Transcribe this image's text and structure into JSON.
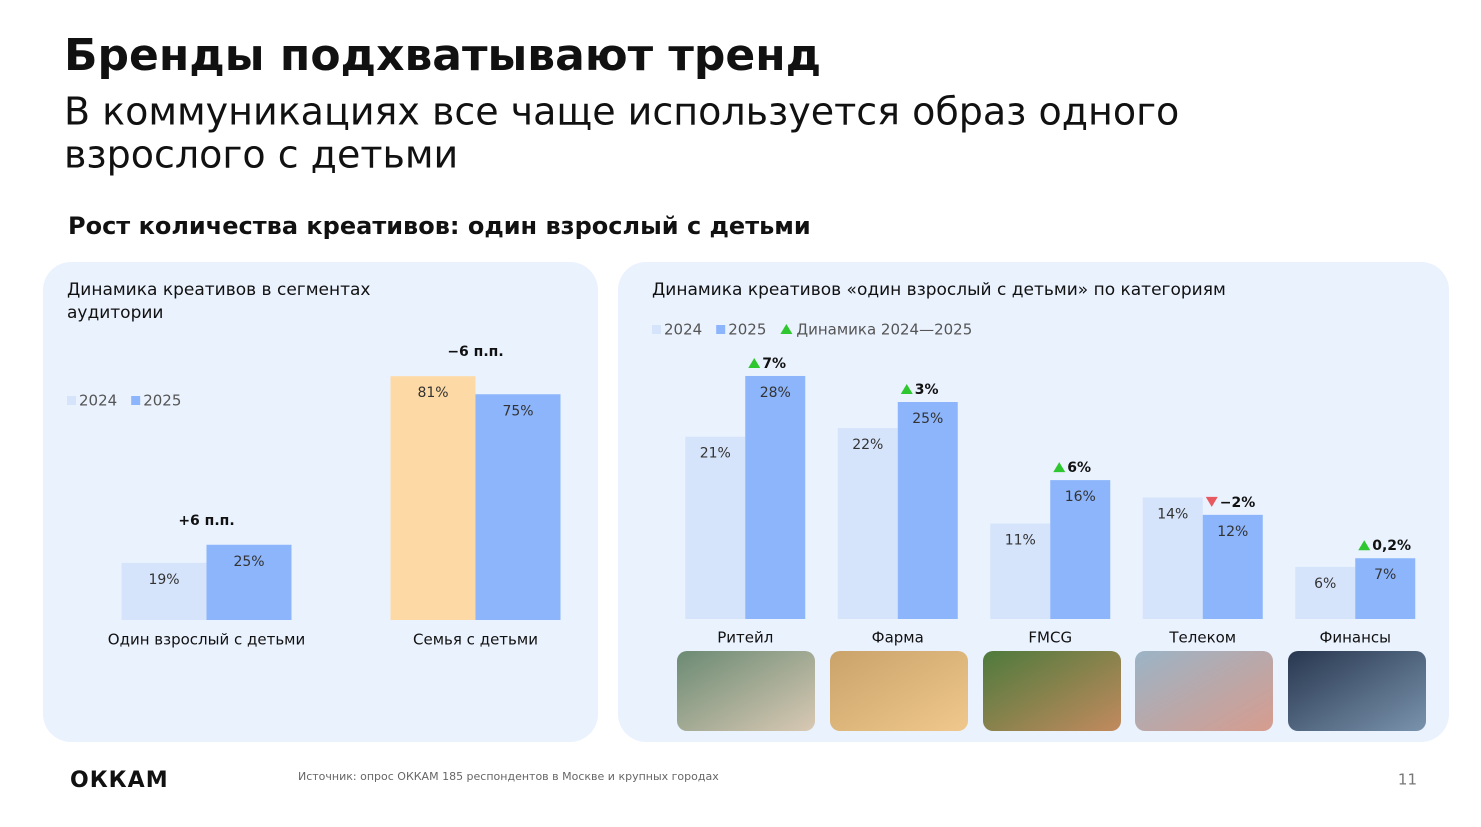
{
  "header": {
    "title": "Бренды подхватывают тренд",
    "subtitle": [
      "В коммуникациях все чаще используется образ одного",
      "взрослого с детьми"
    ],
    "section": "Рост количества креативов: один взрослый с детьми"
  },
  "chart_data": [
    {
      "type": "bar",
      "title": [
        "Динамика креативов в сегментах",
        "аудитории"
      ],
      "categories": [
        "Один взрослый с детьми",
        "Семья с детьми"
      ],
      "series": [
        {
          "name": "2024",
          "color": "#d6e4fb",
          "colors": [
            "#d6e4fb",
            "#fdd9a5"
          ],
          "values": [
            19,
            81
          ],
          "value_labels": [
            "19%",
            "81%"
          ]
        },
        {
          "name": "2025",
          "color": "#8cb5fb",
          "values": [
            25,
            75
          ],
          "value_labels": [
            "25%",
            "75%"
          ]
        }
      ],
      "annotations": [
        "+6 п.п.",
        "−6 п.п."
      ]
    },
    {
      "type": "bar",
      "title": [
        "Динамика креативов «один взрослый с детьми» по категориям"
      ],
      "categories": [
        "Ритейл",
        "Фарма",
        "FMCG",
        "Телеком",
        "Финансы"
      ],
      "series": [
        {
          "name": "2024",
          "color": "#d6e4fb",
          "values": [
            21,
            22,
            11,
            14,
            6
          ],
          "value_labels": [
            "21%",
            "22%",
            "11%",
            "14%",
            "6%"
          ]
        },
        {
          "name": "2025",
          "color": "#8cb5fb",
          "values": [
            28,
            25,
            16,
            12,
            7
          ],
          "value_labels": [
            "28%",
            "25%",
            "16%",
            "12%",
            "7%"
          ]
        }
      ],
      "delta_name": "Динамика 2024—2025",
      "deltas": [
        7,
        3,
        6,
        -2,
        0.2
      ],
      "delta_labels": [
        "7%",
        "3%",
        "6%",
        "−2%",
        "0,2%"
      ],
      "up_color": "#2fc72f",
      "down_color": "#e8585f"
    }
  ],
  "footer": {
    "logo": "ОККАМ",
    "source": "Источник: опрос ОККАМ 185 респондентов в Москве и крупных городах",
    "page": "11"
  }
}
